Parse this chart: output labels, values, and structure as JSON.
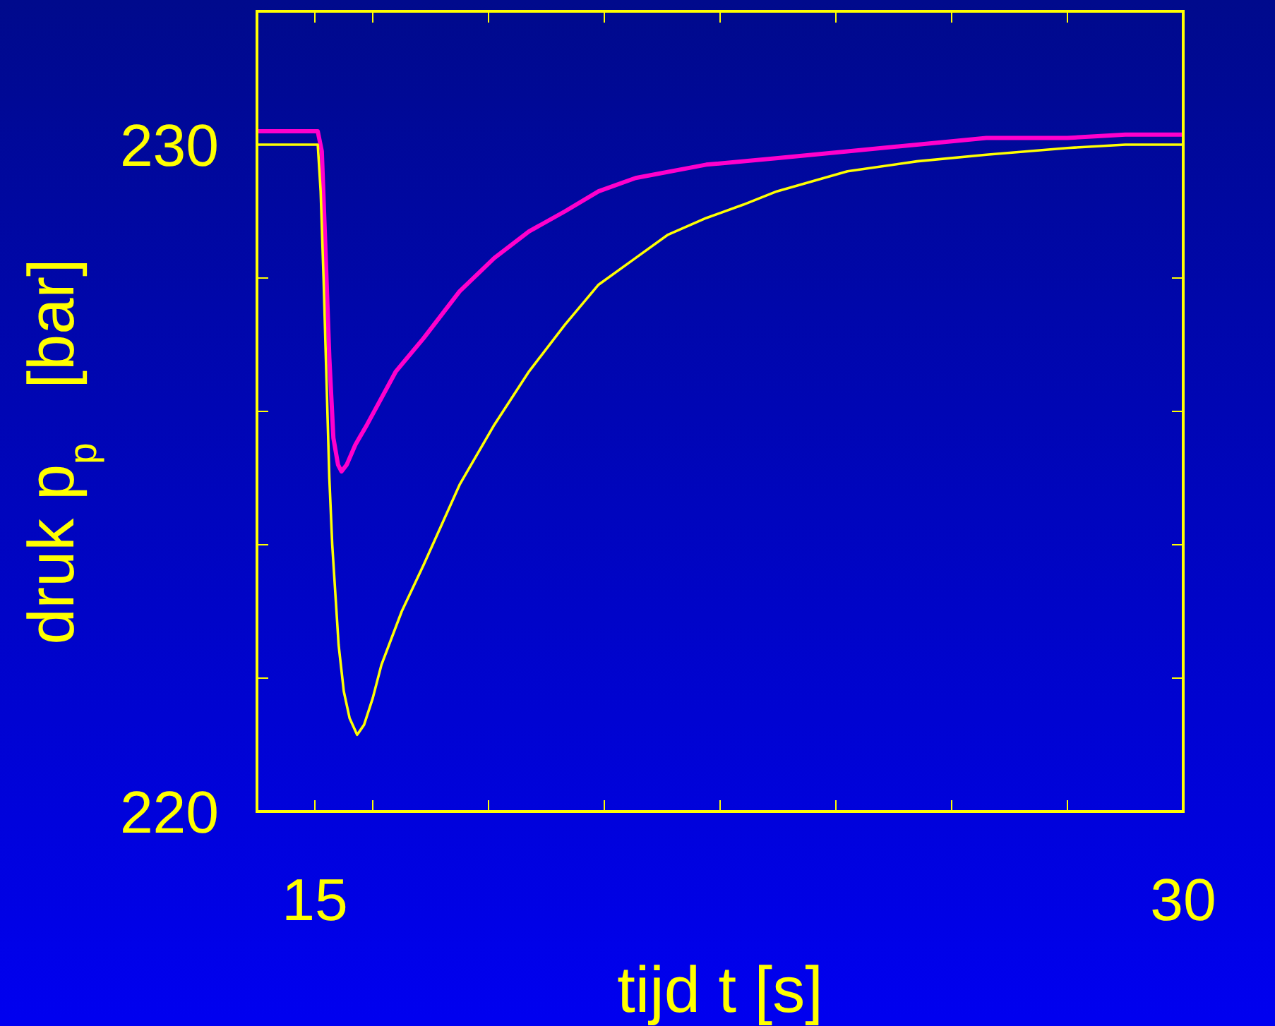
{
  "chart_data": {
    "type": "line",
    "xlabel": "tijd t [s]",
    "ylabel": "druk p$_{p}$   [bar]",
    "xlim": [
      14,
      30
    ],
    "ylim": [
      220,
      232
    ],
    "xticks": [
      {
        "value": 15,
        "label": "15"
      },
      {
        "value": 16,
        "label": null
      },
      {
        "value": 18,
        "label": null
      },
      {
        "value": 20,
        "label": null
      },
      {
        "value": 22,
        "label": null
      },
      {
        "value": 24,
        "label": null
      },
      {
        "value": 26,
        "label": null
      },
      {
        "value": 28,
        "label": null
      },
      {
        "value": 30,
        "label": "30"
      }
    ],
    "yticks": [
      220,
      {
        "value": 222,
        "label": null
      },
      {
        "value": 224,
        "label": null
      },
      {
        "value": 226,
        "label": null
      },
      {
        "value": 228,
        "label": null
      },
      230
    ],
    "grid": false,
    "marker": "none",
    "line_style": "solid",
    "series": [
      {
        "color": "#ff00cc",
        "x": [
          14,
          15.05,
          15.12,
          15.18,
          15.25,
          15.32,
          15.4,
          15.46,
          15.55,
          15.7,
          15.9,
          16.15,
          16.4,
          16.88,
          17.5,
          18.1,
          18.7,
          19.32,
          19.9,
          20.54,
          21.76,
          23.0,
          24.2,
          25.4,
          26.6,
          28.0,
          29.0,
          30.0
        ],
        "values": [
          230.2,
          230.2,
          229.9,
          228.5,
          226.8,
          225.6,
          225.2,
          225.1,
          225.2,
          225.5,
          225.8,
          226.2,
          226.6,
          227.1,
          227.8,
          228.3,
          228.7,
          229.0,
          229.3,
          229.5,
          229.7,
          229.8,
          229.9,
          230.0,
          230.1,
          230.1,
          230.15,
          230.15
        ]
      },
      {
        "color": "#ffff00",
        "x": [
          14,
          15.05,
          15.1,
          15.15,
          15.2,
          15.25,
          15.3,
          15.41,
          15.5,
          15.6,
          15.73,
          15.85,
          16.0,
          16.15,
          16.5,
          16.88,
          17.5,
          18.1,
          18.7,
          19.32,
          19.9,
          20.54,
          21.1,
          21.76,
          22.4,
          22.98,
          24.2,
          25.4,
          26.6,
          28.0,
          29.0,
          30.0
        ],
        "values": [
          230.0,
          230.0,
          229.3,
          228.0,
          226.5,
          225.0,
          224.0,
          222.5,
          221.8,
          221.4,
          221.15,
          221.3,
          221.7,
          222.2,
          223.0,
          223.7,
          224.9,
          225.8,
          226.6,
          227.3,
          227.9,
          228.3,
          228.65,
          228.9,
          229.1,
          229.3,
          229.6,
          229.75,
          229.85,
          229.95,
          230.0,
          230.0
        ]
      }
    ]
  }
}
